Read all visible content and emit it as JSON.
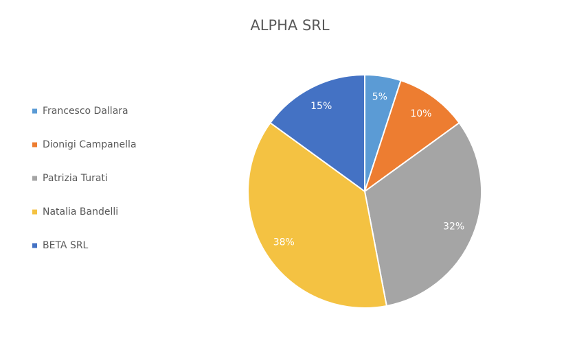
{
  "chart_data": {
    "type": "pie",
    "title": "ALPHA SRL",
    "categories": [
      "Francesco Dallara",
      "Dionigi Campanella",
      "Patrizia Turati",
      "Natalia Bandelli",
      "BETA SRL"
    ],
    "values": [
      5,
      10,
      32,
      38,
      15
    ],
    "value_labels": [
      "5%",
      "10%",
      "32%",
      "38%",
      "15%"
    ],
    "colors": [
      "#5b9bd5",
      "#ed7d31",
      "#a5a5a5",
      "#f4c242",
      "#4472c4"
    ],
    "legend": "left"
  }
}
